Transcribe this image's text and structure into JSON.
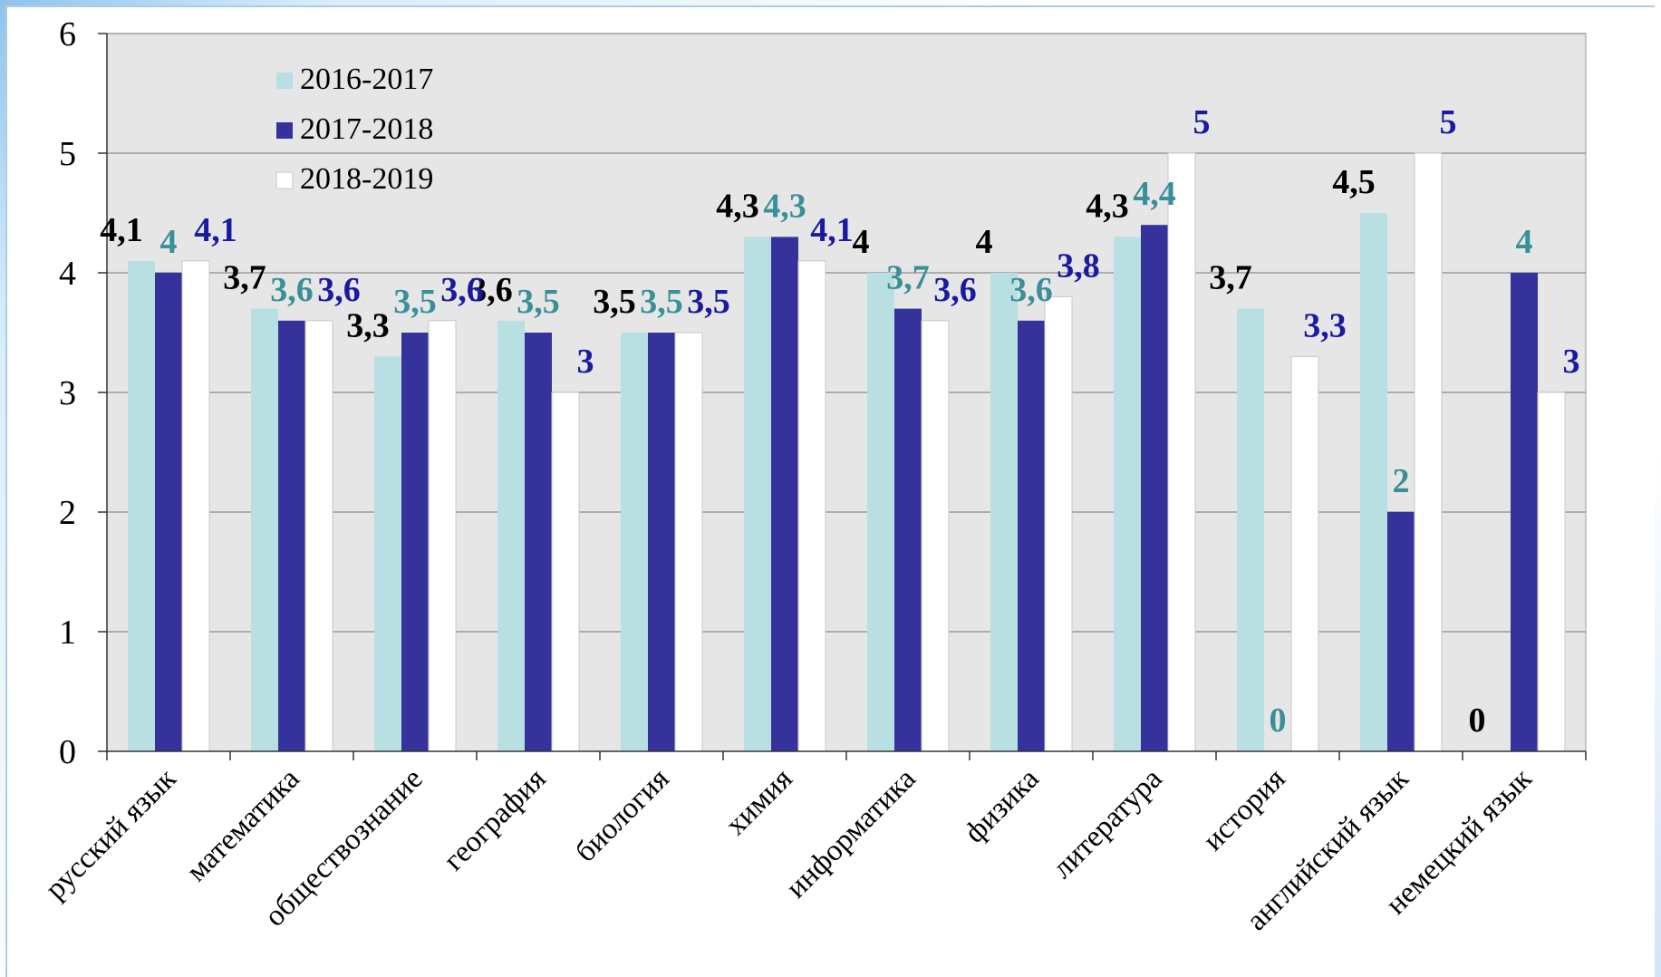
{
  "chart_data": {
    "type": "bar",
    "title": "",
    "xlabel": "",
    "ylabel": "",
    "ylim": [
      0,
      6
    ],
    "yticks": [
      "0",
      "1",
      "2",
      "3",
      "4",
      "5",
      "6"
    ],
    "grid": true,
    "legend_position": "top-left",
    "categories": [
      "русский язык",
      "математика",
      "обществознание",
      "география",
      "биология",
      "химия",
      "информатика",
      "физика",
      "литература",
      "история",
      "английский язык",
      "немецкий язык"
    ],
    "series": [
      {
        "name": "2016-2017",
        "color": "#b8e0e3",
        "label_color": "#000000",
        "values": [
          4.1,
          3.7,
          3.3,
          3.6,
          3.5,
          4.3,
          4,
          4,
          4.3,
          3.7,
          4.5,
          0
        ],
        "labels": [
          "4,1",
          "3,7",
          "3,3",
          "3,6",
          "3,5",
          "4,3",
          "4",
          "4",
          "4,3",
          "3,7",
          "4,5",
          "0"
        ]
      },
      {
        "name": "2017-2018",
        "color": "#35339b",
        "label_color": "#3a9098",
        "values": [
          4,
          3.6,
          3.5,
          3.5,
          3.5,
          4.3,
          3.7,
          3.6,
          4.4,
          0,
          2,
          4
        ],
        "labels": [
          "4",
          "3,6",
          "3,5",
          "3,5",
          "3,5",
          "4,3",
          "3,7",
          "3,6",
          "4,4",
          "0",
          "2",
          "4"
        ]
      },
      {
        "name": "2018-2019",
        "color": "#ffffff",
        "label_color": "#1a1aa0",
        "values": [
          4.1,
          3.6,
          3.6,
          3,
          3.5,
          4.1,
          3.6,
          3.8,
          5,
          3.3,
          5,
          3
        ],
        "labels": [
          "4,1",
          "3,6",
          "3,6",
          "3",
          "3,5",
          "4,1",
          "3,6",
          "3,8",
          "5",
          "3,3",
          "5",
          "3"
        ]
      }
    ]
  }
}
